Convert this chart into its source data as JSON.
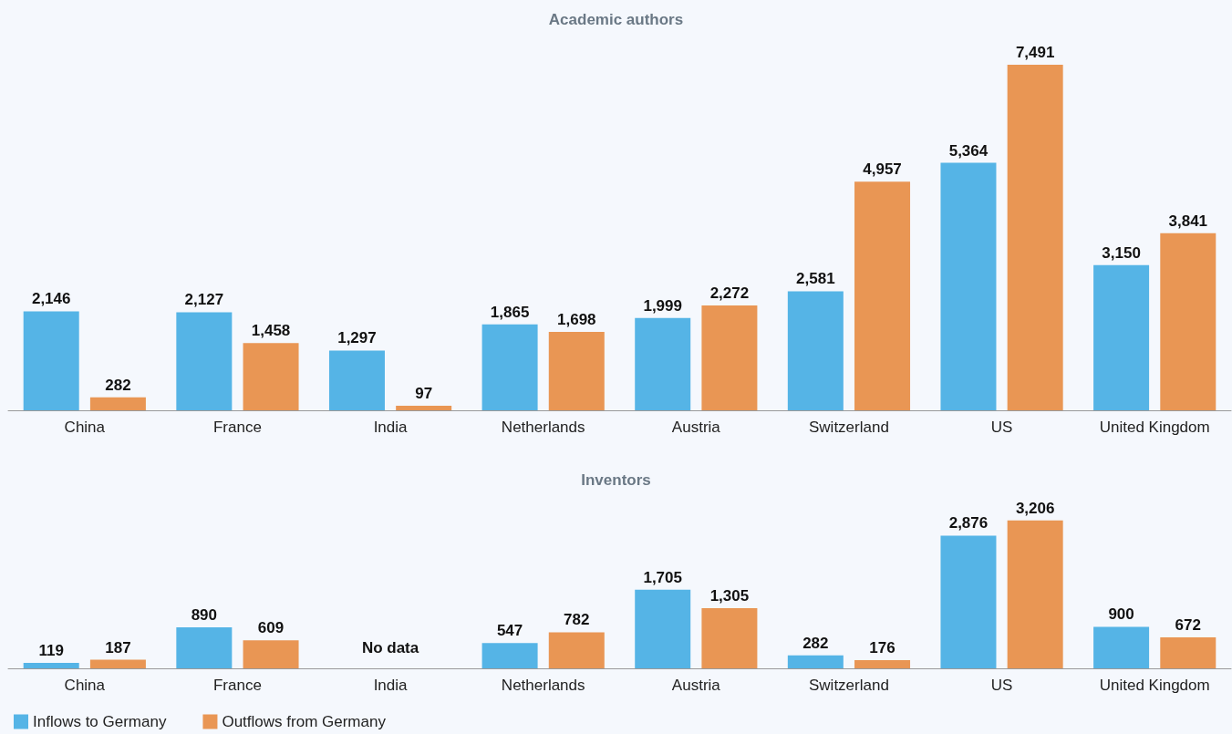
{
  "chart_data": [
    {
      "type": "bar",
      "title": "Academic authors",
      "categories": [
        "China",
        "France",
        "India",
        "Netherlands",
        "Austria",
        "Switzerland",
        "US",
        "United Kingdom"
      ],
      "series": [
        {
          "color": "#55b4e6",
          "values": [
            2146,
            2127,
            1297,
            1865,
            1999,
            2581,
            5364,
            3150
          ],
          "value_labels": [
            "2,146",
            "2,127",
            "1,297",
            "1,865",
            "1,999",
            "2,581",
            "5,364",
            "3,150"
          ]
        },
        {
          "color": "#e99654",
          "values": [
            282,
            1458,
            97,
            1698,
            2272,
            4957,
            7491,
            3841
          ],
          "value_labels": [
            "282",
            "1,458",
            "97",
            "1,698",
            "2,272",
            "4,957",
            "7,491",
            "3,841"
          ]
        }
      ]
    },
    {
      "type": "bar",
      "title": "Inventors",
      "legend": "bottom left",
      "categories": [
        "China",
        "France",
        "India",
        "Netherlands",
        "Austria",
        "Switzerland",
        "US",
        "United Kingdom"
      ],
      "annotations": [
        "No data"
      ],
      "series": [
        {
          "name": "Inflows to Germany",
          "color": "#55b4e6",
          "values": [
            119,
            890,
            null,
            547,
            1705,
            282,
            2876,
            900
          ],
          "value_labels": [
            "119",
            "890",
            null,
            "547",
            "1,705",
            "282",
            "2,876",
            "900"
          ]
        },
        {
          "name": "Outflows from Germany",
          "color": "#e99654",
          "values": [
            187,
            609,
            null,
            782,
            1305,
            176,
            3206,
            672
          ],
          "value_labels": [
            "187",
            "609",
            null,
            "782",
            "1,305",
            "176",
            "3,206",
            "672"
          ]
        }
      ]
    }
  ]
}
